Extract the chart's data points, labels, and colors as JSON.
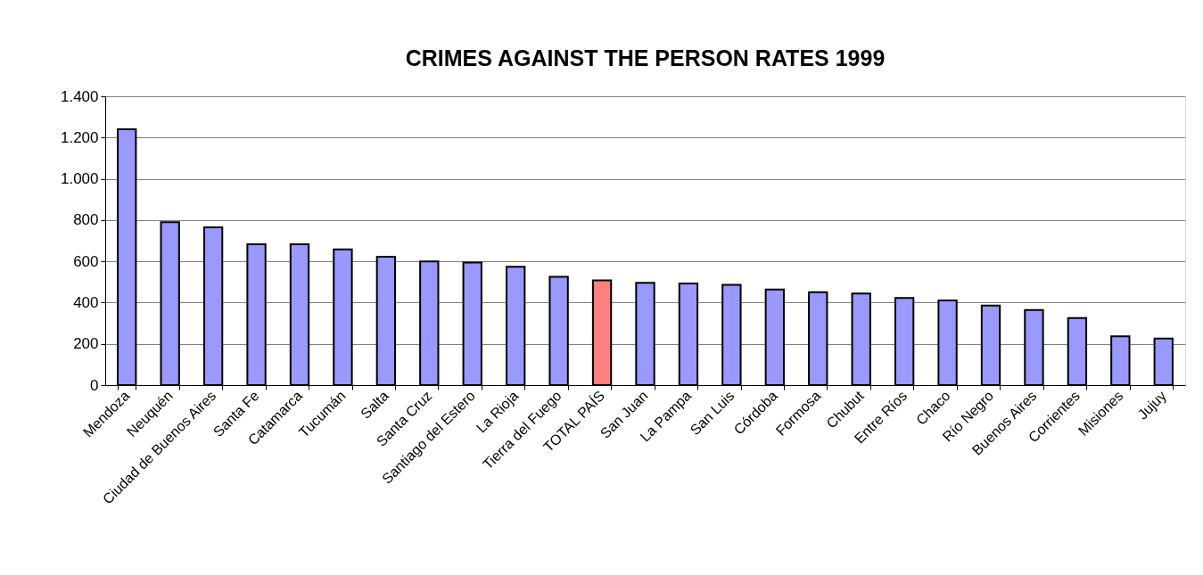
{
  "chart_data": {
    "type": "bar",
    "title": "CRIMES AGAINST THE PERSON RATES 1999",
    "categories": [
      "Mendoza",
      "Neuquén",
      "Ciudad de Buenos Aires",
      "Santa Fe",
      "Catamarca",
      "Tucumán",
      "Salta",
      "Santa Cruz",
      "Santiago del Estero",
      "La Rioja",
      "Tierra del Fuego",
      "TOTAL PAÍS",
      "San Juan",
      "La Pampa",
      "San Luis",
      "Córdoba",
      "Formosa",
      "Chubut",
      "Entre Ríos",
      "Chaco",
      "Río Negro",
      "Buenos Aires",
      "Corrientes",
      "Misiones",
      "Jujuy"
    ],
    "values": [
      1240,
      790,
      765,
      683,
      683,
      658,
      622,
      599,
      594,
      574,
      525,
      508,
      496,
      493,
      486,
      463,
      450,
      444,
      422,
      411,
      386,
      364,
      325,
      237,
      226
    ],
    "colors": [
      "#9999ff",
      "#9999ff",
      "#9999ff",
      "#9999ff",
      "#9999ff",
      "#9999ff",
      "#9999ff",
      "#9999ff",
      "#9999ff",
      "#9999ff",
      "#9999ff",
      "#ff8080",
      "#9999ff",
      "#9999ff",
      "#9999ff",
      "#9999ff",
      "#9999ff",
      "#9999ff",
      "#9999ff",
      "#9999ff",
      "#9999ff",
      "#9999ff",
      "#9999ff",
      "#9999ff",
      "#9999ff"
    ],
    "ylim": [
      0,
      1400
    ],
    "yticks": [
      0,
      200,
      400,
      600,
      800,
      {
        "value": 1000,
        "label": "1.000"
      },
      {
        "value": 1200,
        "label": "1.200"
      },
      {
        "value": 1400,
        "label": "1.400"
      }
    ],
    "grid": "y"
  }
}
